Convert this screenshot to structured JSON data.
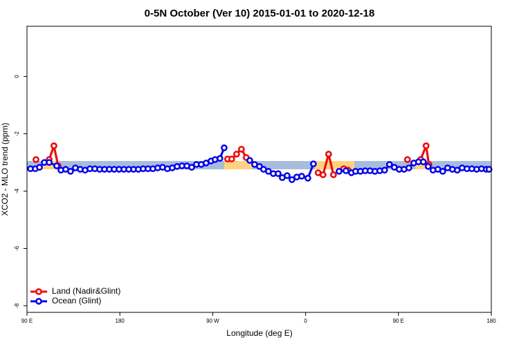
{
  "chart_data": {
    "type": "line",
    "title": "0-5N October (Ver 10)   2015-01-01 to 2020-12-18",
    "x_label": "Longitude (deg E)",
    "y_label": "XCO2 - MLO trend (ppm)",
    "xlim": [
      90,
      540
    ],
    "xticks": [
      {
        "value": 90,
        "label": "90 E"
      },
      180,
      {
        "value": 270,
        "label": "90 W"
      },
      {
        "value": 360,
        "label": "0"
      },
      {
        "value": 450,
        "label": "90 E"
      },
      {
        "value": 540,
        "label": "180"
      }
    ],
    "ylim": [
      -8.23,
      1.75
    ],
    "yticks": [
      -8,
      -6,
      -4,
      -2,
      0
    ],
    "legend": "bottom-left",
    "series": [
      {
        "name": "Land (Nadir&Glint)",
        "color": "#ff0000",
        "x": [
          98.7,
          null,
          111.5,
          116.1,
          120.2,
          null,
          284.4,
          288.4,
          293.1,
          297.8,
          302.5,
          null,
          372.2,
          376.9,
          382.3,
          387.0,
          null,
          397.0,
          401.1,
          null,
          458.7,
          null,
          471.5,
          476.8,
          479.5
        ],
        "values": [
          -2.9,
          null,
          -2.9,
          -2.42,
          -3.12,
          null,
          -2.88,
          -2.88,
          -2.71,
          -2.54,
          -2.83,
          null,
          -3.36,
          -3.43,
          -2.71,
          -3.43,
          null,
          -3.22,
          -3.27,
          null,
          -2.9,
          null,
          -2.9,
          -2.42,
          -3.07
        ]
      },
      {
        "name": "Ocean (Glint)",
        "color": "#0000ff",
        "x": [
          93.4,
          98.0,
          102.1,
          106.8,
          111.5,
          118.8,
          122.9,
          127.5,
          132.2,
          136.9,
          141.6,
          146.3,
          151.0,
          155.7,
          160.4,
          165.1,
          169.8,
          174.5,
          179.2,
          183.9,
          188.6,
          193.3,
          197.9,
          202.6,
          207.3,
          212.0,
          216.7,
          221.4,
          226.1,
          230.8,
          235.5,
          240.2,
          244.9,
          249.6,
          254.2,
          258.9,
          263.6,
          268.3,
          272.3,
          277.0,
          281.1,
          null,
          305.9,
          310.6,
          315.3,
          319.3,
          324.0,
          328.7,
          333.4,
          337.4,
          342.1,
          346.8,
          351.5,
          356.2,
          362.2,
          367.6,
          null,
          392.4,
          399.1,
          404.4,
          408.4,
          413.1,
          417.8,
          422.5,
          427.2,
          431.9,
          436.6,
          441.3,
          446.0,
          450.7,
          455.4,
          460.1,
          464.8,
          469.4,
          474.1,
          478.8,
          483.5,
          488.2,
          492.9,
          497.6,
          502.3,
          507.0,
          511.7,
          516.4,
          521.1,
          525.8,
          530.5,
          535.1,
          537.8
        ],
        "values": [
          -3.22,
          -3.22,
          -3.17,
          -3.0,
          -3.0,
          -3.12,
          -3.27,
          -3.24,
          -3.31,
          -3.19,
          -3.24,
          -3.27,
          -3.22,
          -3.22,
          -3.24,
          -3.24,
          -3.24,
          -3.24,
          -3.24,
          -3.24,
          -3.24,
          -3.24,
          -3.24,
          -3.22,
          -3.22,
          -3.22,
          -3.19,
          -3.17,
          -3.22,
          -3.19,
          -3.14,
          -3.12,
          -3.12,
          -3.17,
          -3.07,
          -3.07,
          -3.02,
          -2.95,
          -2.9,
          -2.86,
          -2.49,
          null,
          -2.93,
          -3.07,
          -3.14,
          -3.24,
          -3.31,
          -3.39,
          -3.39,
          -3.53,
          -3.46,
          -3.6,
          -3.51,
          -3.48,
          -3.55,
          -3.05,
          null,
          -3.31,
          -3.29,
          -3.36,
          -3.31,
          -3.31,
          -3.29,
          -3.29,
          -3.31,
          -3.29,
          -3.27,
          -3.07,
          -3.17,
          -3.24,
          -3.24,
          -3.19,
          -3.02,
          -2.98,
          -2.98,
          -3.14,
          -3.27,
          -3.24,
          -3.31,
          -3.19,
          -3.24,
          -3.27,
          -3.19,
          -3.22,
          -3.22,
          -3.24,
          -3.22,
          -3.24,
          -3.24
        ]
      }
    ]
  }
}
